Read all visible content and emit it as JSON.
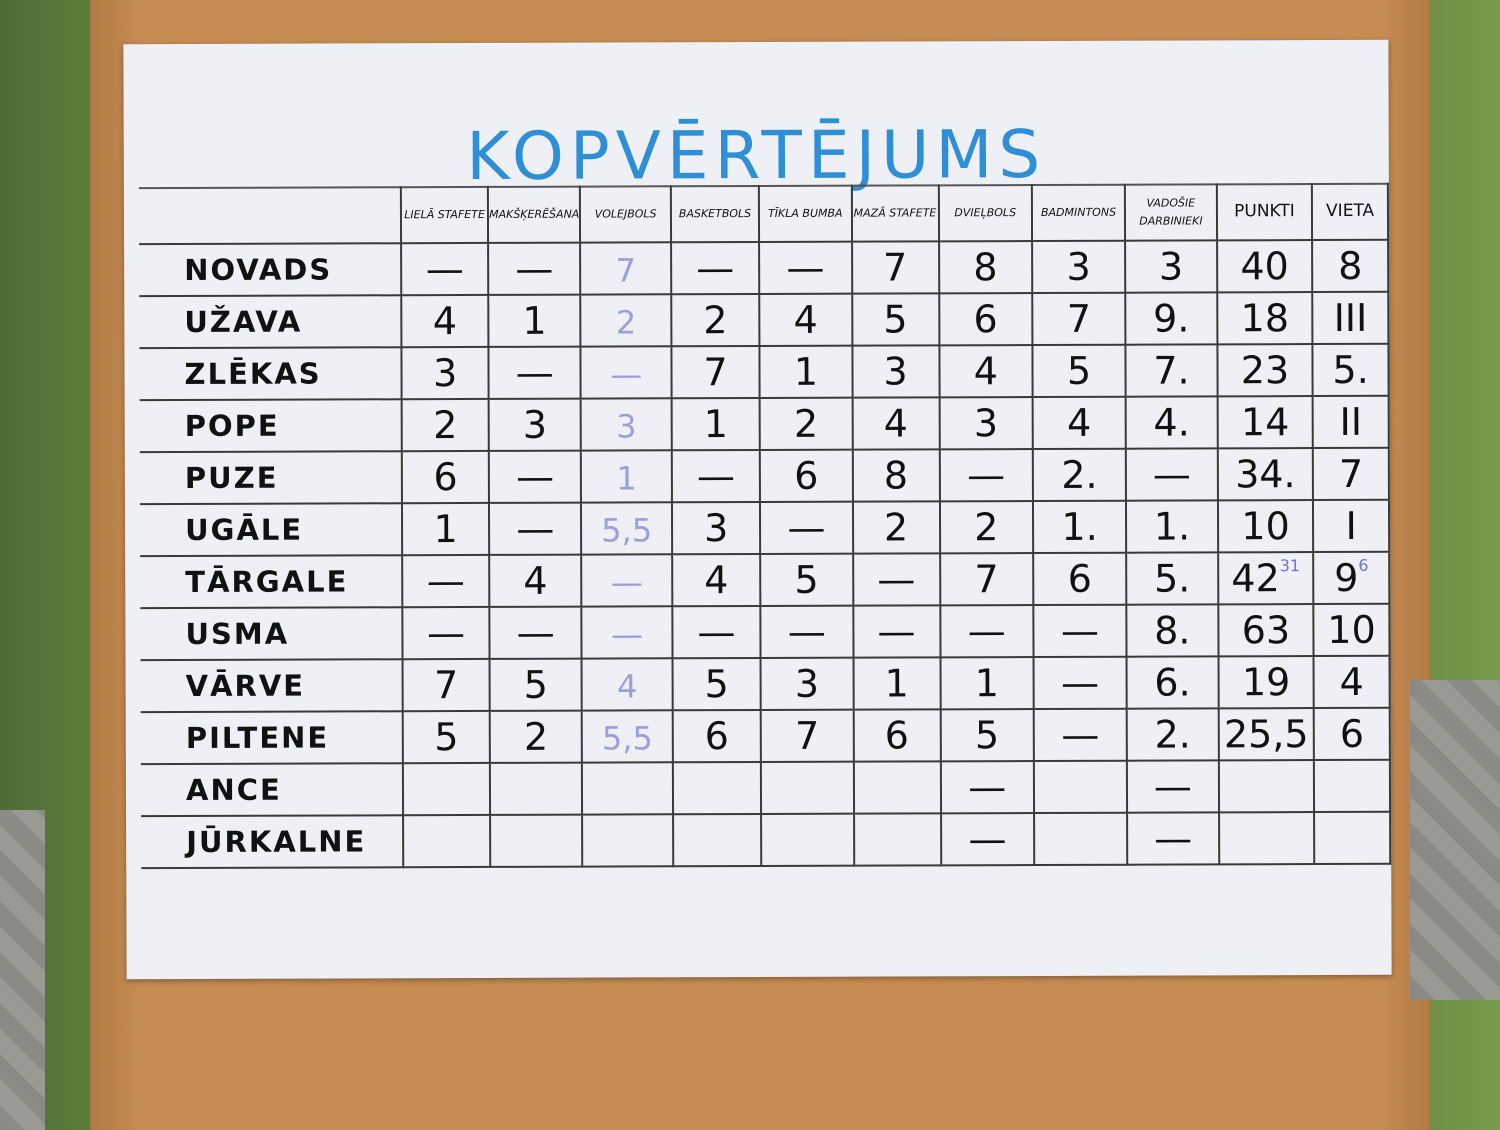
{
  "title": "KOPVĒRTĒJUMS",
  "columns": [
    "",
    "LIELĀ STAFETE",
    "MAKŠĶERĒŠANA",
    "VOLEJBOLS",
    "BASKETBOLS",
    "TĪKLA BUMBA",
    "MAZĀ STAFETE",
    "DVIEĻBOLS",
    "BADMINTONS",
    "VADOŠIE DARBINIEKI",
    "PUNKTI",
    "VIETA"
  ],
  "rows": [
    {
      "name": "NOVADS",
      "cells": [
        "—",
        "—",
        "7",
        "—",
        "—",
        "7",
        "8",
        "3",
        "3",
        "40",
        "8"
      ]
    },
    {
      "name": "UŽAVA",
      "cells": [
        "4",
        "1",
        "2",
        "2",
        "4",
        "5",
        "6",
        "7",
        "9.",
        "18",
        "III"
      ]
    },
    {
      "name": "ZLĒKAS",
      "cells": [
        "3",
        "—",
        "—",
        "7",
        "1",
        "3",
        "4",
        "5",
        "7.",
        "23",
        "5."
      ]
    },
    {
      "name": "POPE",
      "cells": [
        "2",
        "3",
        "3",
        "1",
        "2",
        "4",
        "3",
        "4",
        "4.",
        "14",
        "II"
      ]
    },
    {
      "name": "PUZE",
      "cells": [
        "6",
        "—",
        "1",
        "—",
        "6",
        "8",
        "—",
        "2.",
        "—",
        "34.",
        "7"
      ]
    },
    {
      "name": "UGĀLE",
      "cells": [
        "1",
        "—",
        "5,5",
        "3",
        "—",
        "2",
        "2",
        "1.",
        "1.",
        "10",
        "I"
      ]
    },
    {
      "name": "TĀRGALE",
      "cells": [
        "—",
        "4",
        "—",
        "4",
        "5",
        "—",
        "7",
        "6",
        "5.",
        "42",
        "9"
      ],
      "corrections": {
        "punkti": "31",
        "vieta": "6"
      }
    },
    {
      "name": "USMA",
      "cells": [
        "—",
        "—",
        "—",
        "—",
        "—",
        "—",
        "—",
        "—",
        "8.",
        "63",
        "10"
      ]
    },
    {
      "name": "VĀRVE",
      "cells": [
        "7",
        "5",
        "4",
        "5",
        "3",
        "1",
        "1",
        "—",
        "6.",
        "19",
        "4"
      ]
    },
    {
      "name": "PILTENE",
      "cells": [
        "5",
        "2",
        "5,5",
        "6",
        "7",
        "6",
        "5",
        "—",
        "2.",
        "25,5",
        "6"
      ]
    },
    {
      "name": "ANCE",
      "cells": [
        "",
        "",
        "",
        "",
        "",
        "",
        "—",
        "",
        "—",
        "",
        ""
      ]
    },
    {
      "name": "JŪRKALNE",
      "cells": [
        "",
        "",
        "",
        "",
        "",
        "",
        "—",
        "",
        "—",
        "",
        ""
      ]
    }
  ]
}
